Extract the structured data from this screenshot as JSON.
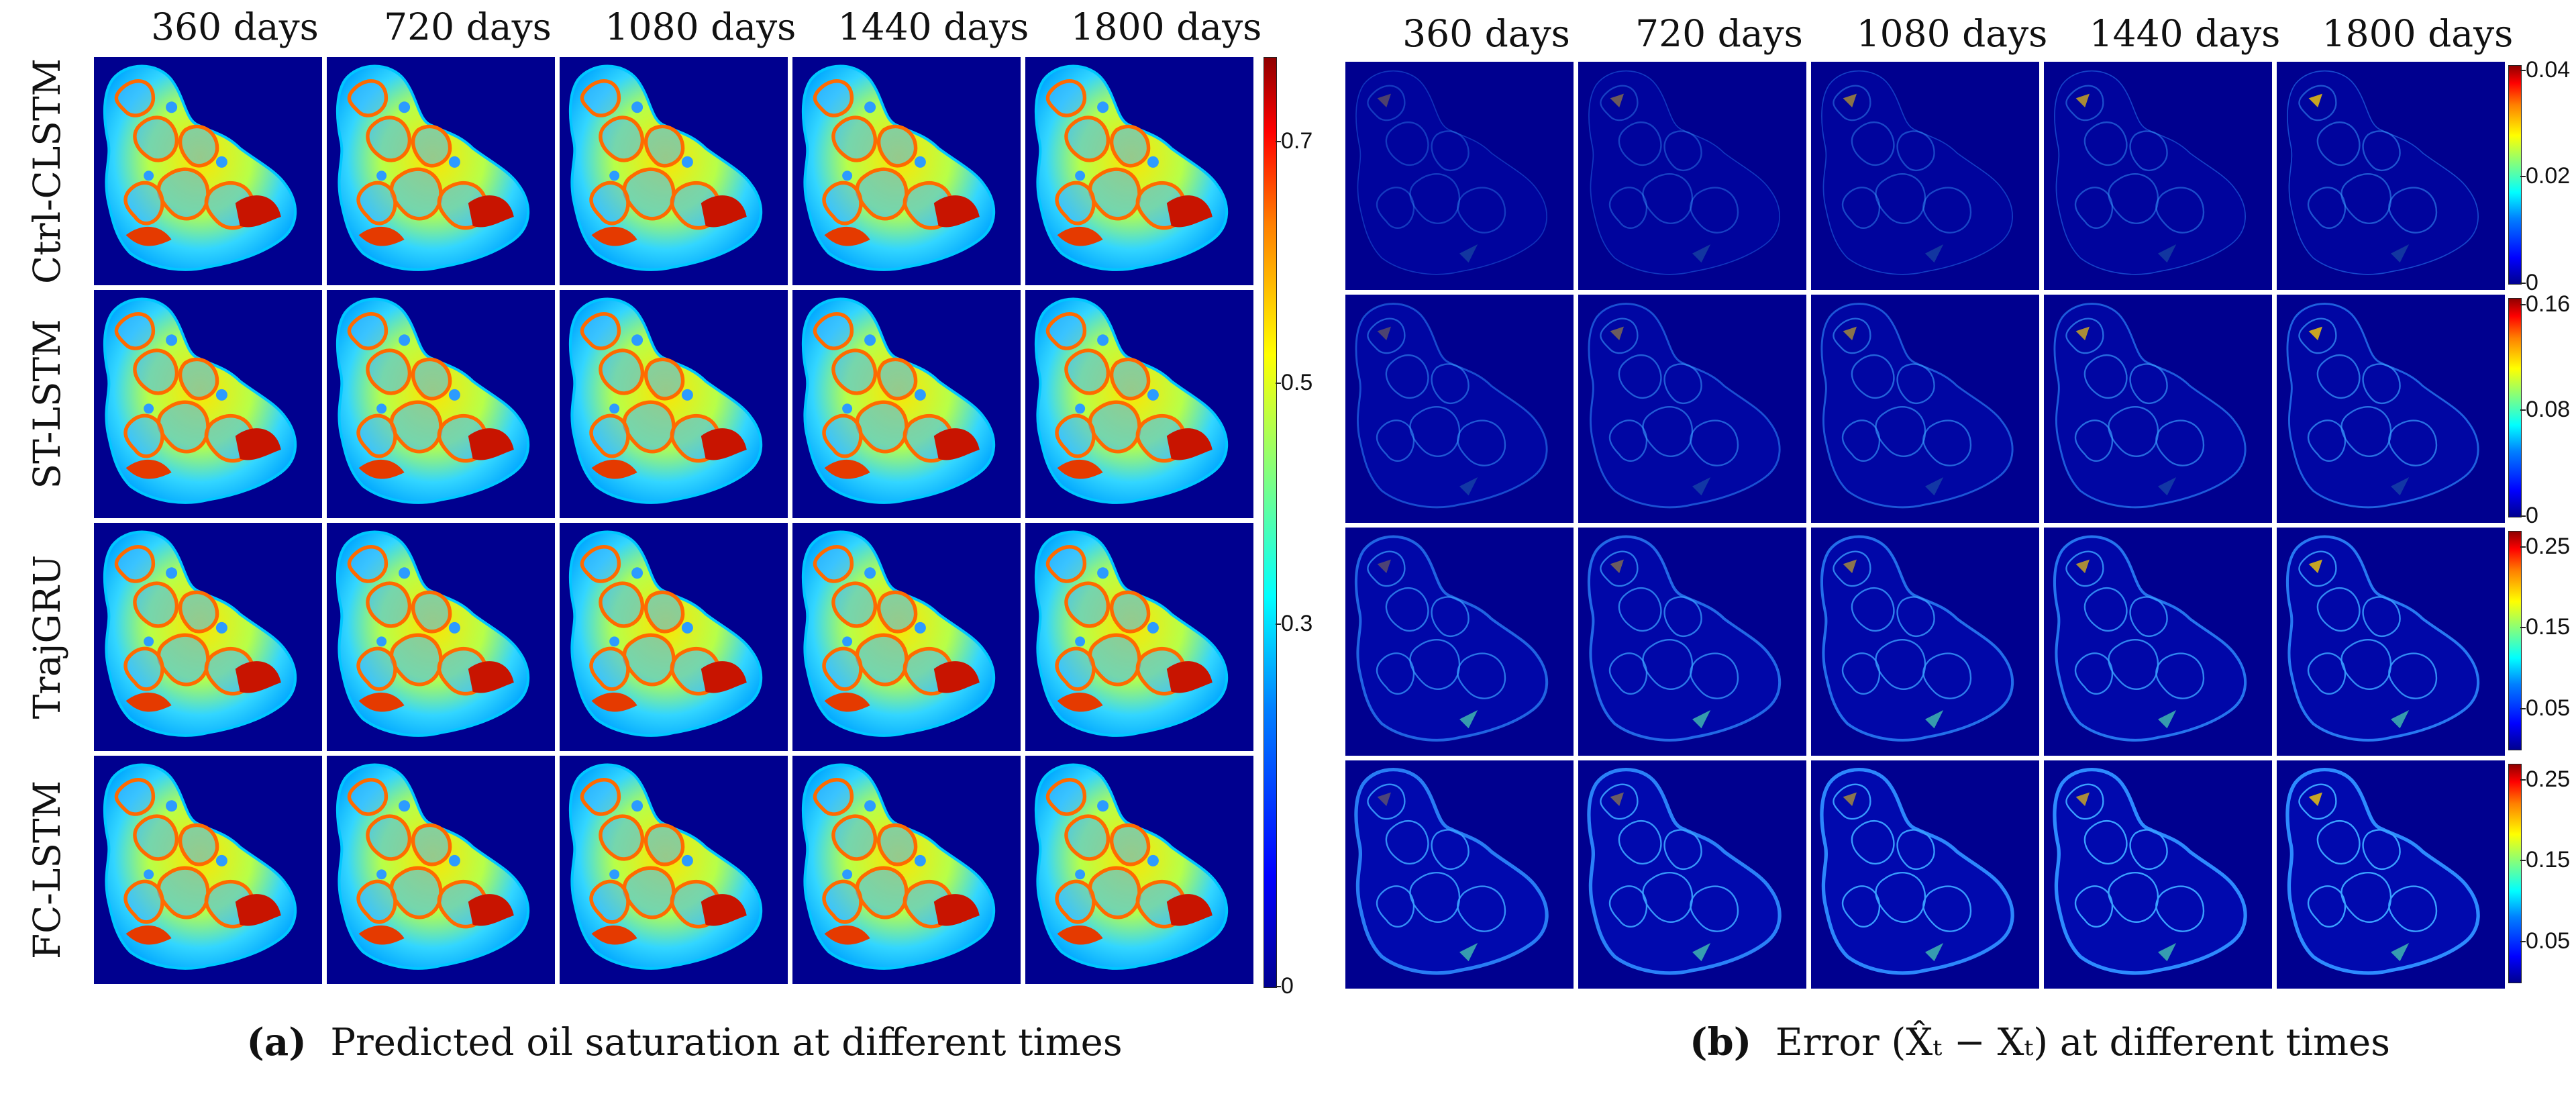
{
  "panel_a": {
    "columns": [
      "360 days",
      "720 days",
      "1080 days",
      "1440 days",
      "1800 days"
    ],
    "rows": [
      "Ctrl-CLSTM",
      "ST-LSTM",
      "TrajGRU",
      "FC-LSTM"
    ],
    "colorbar": {
      "ticks": [
        "0.7",
        "0.5",
        "0.3",
        "0"
      ],
      "values": [
        0.7,
        0.5,
        0.3,
        0
      ],
      "max": 0.77
    },
    "caption_label": "(a)",
    "caption_text": "Predicted oil saturation at different times"
  },
  "panel_b": {
    "columns": [
      "360 days",
      "720 days",
      "1080 days",
      "1440 days",
      "1800 days"
    ],
    "colorbars": [
      {
        "ticks": [
          "0.04",
          "0.02",
          "0"
        ],
        "values": [
          0.04,
          0.02,
          0
        ],
        "min": 0,
        "max": 0.041
      },
      {
        "ticks": [
          "0.16",
          "0.08",
          "0"
        ],
        "values": [
          0.16,
          0.08,
          0
        ],
        "min": 0,
        "max": 0.165
      },
      {
        "ticks": [
          "0.25",
          "0.15",
          "0.05"
        ],
        "values": [
          0.25,
          0.15,
          0.05
        ],
        "min": 0.0,
        "max": 0.27
      },
      {
        "ticks": [
          "0.25",
          "0.15",
          "0.05"
        ],
        "values": [
          0.25,
          0.15,
          0.05
        ],
        "min": 0.0,
        "max": 0.27
      }
    ],
    "caption_label": "(b)",
    "caption_text": "Error (X̂ₜ − Xₜ) at different times"
  },
  "colors": {
    "jet_low": "#00008f",
    "jet_high": "#8f0000",
    "background": "#ffffff"
  }
}
